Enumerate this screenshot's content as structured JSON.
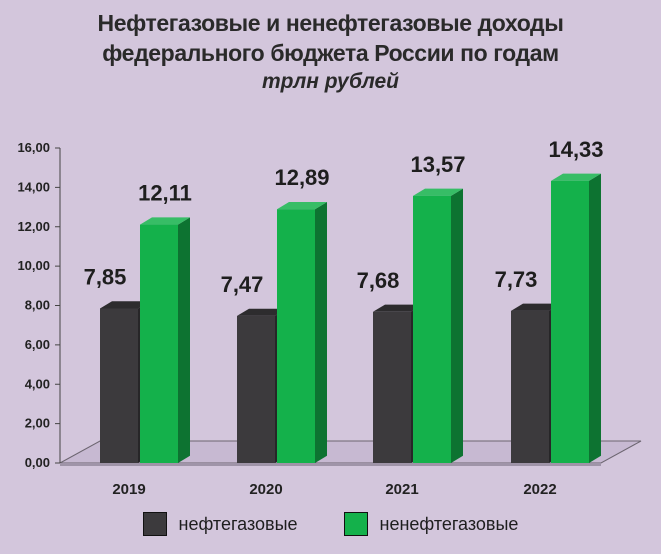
{
  "header": {
    "title_line1": "Нефтегазовые и ненефтегазовые доходы",
    "title_line2": "федерального бюджета России по годам",
    "subtitle": "трлн рублей"
  },
  "colors": {
    "oil_gas": "#3c3a3d",
    "non_oil_gas": "#14b14b",
    "background": "#d3c6dc"
  },
  "legend": [
    {
      "label": "нефтегазовые",
      "color": "#3c3a3d"
    },
    {
      "label": "ненефтегазовые",
      "color": "#14b14b"
    }
  ],
  "chart_data": {
    "type": "bar",
    "title": "Нефтегазовые и ненефтегазовые доходы федерального бюджета России по годам",
    "subtitle": "трлн рублей",
    "categories": [
      "2019",
      "2020",
      "2021",
      "2022"
    ],
    "series": [
      {
        "name": "нефтегазовые",
        "values": [
          7.85,
          7.47,
          7.68,
          7.73
        ],
        "labels": [
          "7,85",
          "7,47",
          "7,68",
          "7,73"
        ]
      },
      {
        "name": "ненефтегазовые",
        "values": [
          12.11,
          12.89,
          13.57,
          14.33
        ],
        "labels": [
          "12,11",
          "12,89",
          "13,57",
          "14,33"
        ]
      }
    ],
    "ylim": [
      0,
      16
    ],
    "yticks": [
      0,
      2,
      4,
      6,
      8,
      10,
      12,
      14,
      16
    ],
    "ytick_labels": [
      "0,00",
      "2,00",
      "4,00",
      "6,00",
      "8,00",
      "10,00",
      "12,00",
      "14,00",
      "16,00"
    ],
    "grid": false,
    "legend_position": "bottom",
    "style": "3d"
  }
}
